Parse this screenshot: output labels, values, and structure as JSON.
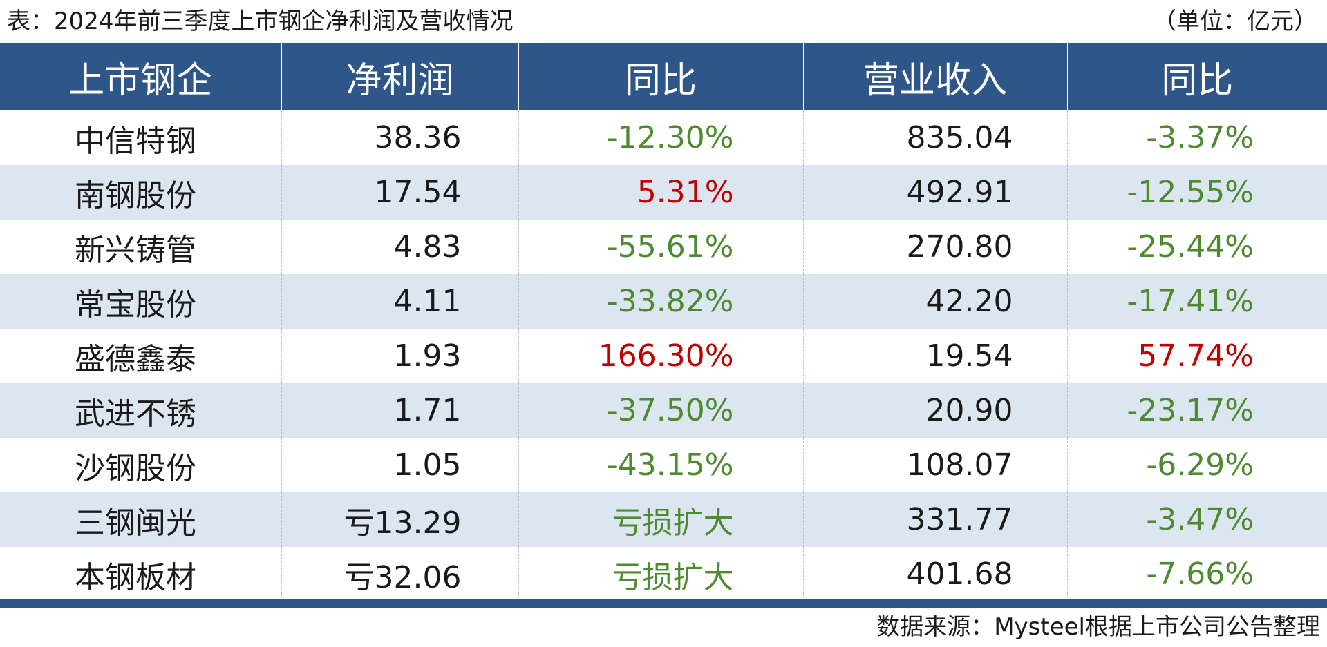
{
  "header": {
    "title": "表：2024年前三季度上市钢企净利润及营收情况",
    "unit": "（单位：亿元）"
  },
  "table": {
    "columns": [
      "上市钢企",
      "净利润",
      "同比",
      "营业收入",
      "同比"
    ],
    "rows": [
      {
        "company": "中信特钢",
        "net_profit": "38.36",
        "profit_yoy": "-12.30%",
        "revenue": "835.04",
        "revenue_yoy": "-3.37%"
      },
      {
        "company": "南钢股份",
        "net_profit": "17.54",
        "profit_yoy": "5.31%",
        "revenue": "492.91",
        "revenue_yoy": "-12.55%"
      },
      {
        "company": "新兴铸管",
        "net_profit": "4.83",
        "profit_yoy": "-55.61%",
        "revenue": "270.80",
        "revenue_yoy": "-25.44%"
      },
      {
        "company": "常宝股份",
        "net_profit": "4.11",
        "profit_yoy": "-33.82%",
        "revenue": "42.20",
        "revenue_yoy": "-17.41%"
      },
      {
        "company": "盛德鑫泰",
        "net_profit": "1.93",
        "profit_yoy": "166.30%",
        "revenue": "19.54",
        "revenue_yoy": "57.74%"
      },
      {
        "company": "武进不锈",
        "net_profit": "1.71",
        "profit_yoy": "-37.50%",
        "revenue": "20.90",
        "revenue_yoy": "-23.17%"
      },
      {
        "company": "沙钢股份",
        "net_profit": "1.05",
        "profit_yoy": "-43.15%",
        "revenue": "108.07",
        "revenue_yoy": "-6.29%"
      },
      {
        "company": "三钢闽光",
        "net_profit": "亏13.29",
        "profit_yoy": "亏损扩大",
        "revenue": "331.77",
        "revenue_yoy": "-3.47%"
      },
      {
        "company": "本钢板材",
        "net_profit": "亏32.06",
        "profit_yoy": "亏损扩大",
        "revenue": "401.68",
        "revenue_yoy": "-7.66%"
      }
    ]
  },
  "footer": {
    "source": "数据来源：Mysteel根据上市公司公告整理"
  },
  "colors": {
    "header_bg": "#2f5689",
    "alt_row_bg": "#dce6f1",
    "positive": "#c00000",
    "negative": "#4e8a2f"
  }
}
